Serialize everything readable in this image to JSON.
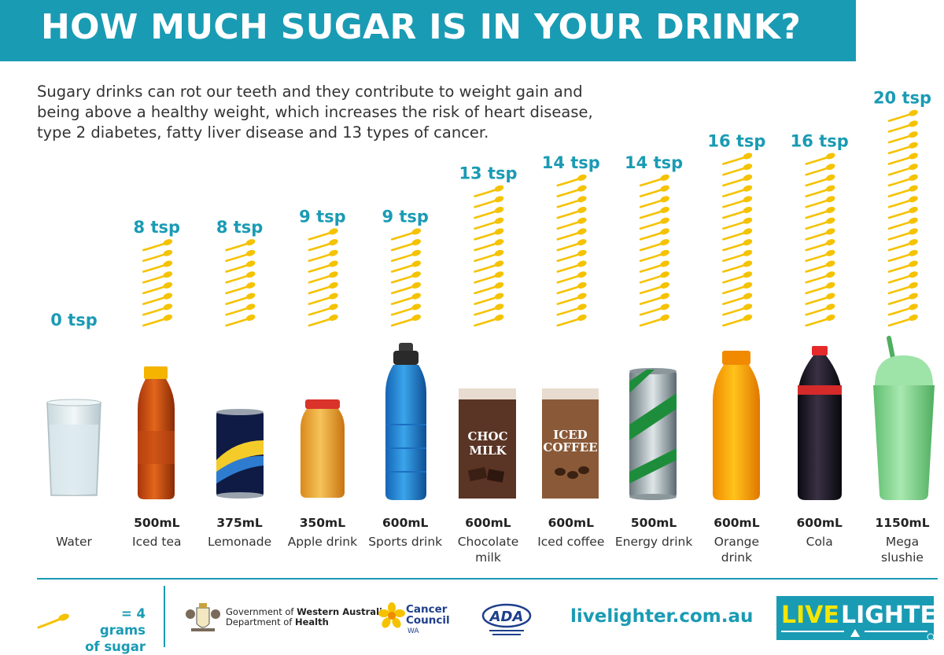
{
  "title": "HOW MUCH SUGAR IS IN YOUR DRINK?",
  "intro": "Sugary drinks can rot our teeth and they contribute to weight gain and being above a healthy weight, which increases the risk of heart disease, type 2 diabetes, fatty liver disease and 13 types of cancer.",
  "colors": {
    "accent": "#1a9bb4",
    "spoon": "#f5c200"
  },
  "chart_data": {
    "type": "bar",
    "unit_label": "tsp",
    "categories": [
      "Water",
      "Iced tea",
      "Lemonade",
      "Apple drink",
      "Sports drink",
      "Chocolate milk",
      "Iced coffee",
      "Energy drink",
      "Orange drink",
      "Cola",
      "Mega slushie"
    ],
    "values": [
      0,
      8,
      8,
      9,
      9,
      13,
      14,
      14,
      16,
      16,
      20
    ],
    "value_labels": [
      "0 tsp",
      "8 tsp",
      "8 tsp",
      "9 tsp",
      "9 tsp",
      "13 tsp",
      "14 tsp",
      "14 tsp",
      "16 tsp",
      "16 tsp",
      "20 tsp"
    ],
    "volumes": [
      "",
      "500mL",
      "375mL",
      "350mL",
      "600mL",
      "600mL",
      "600mL",
      "500mL",
      "600mL",
      "600mL",
      "1150mL"
    ],
    "name_lines": [
      [
        "Water"
      ],
      [
        "Iced tea"
      ],
      [
        "Lemonade"
      ],
      [
        "Apple drink"
      ],
      [
        "Sports drink"
      ],
      [
        "Chocolate",
        "milk"
      ],
      [
        "Iced coffee"
      ],
      [
        "Energy drink"
      ],
      [
        "Orange",
        "drink"
      ],
      [
        "Cola"
      ],
      [
        "Mega",
        "slushie"
      ]
    ],
    "drink_icons": [
      "water-glass",
      "iced-tea-bottle",
      "lemonade-can",
      "apple-drink-jar",
      "sports-drink-bottle",
      "chocolate-milk-carton",
      "iced-coffee-carton",
      "energy-drink-can",
      "orange-drink-bottle",
      "cola-bottle",
      "slushie-cup"
    ],
    "pack_text": {
      "choc": [
        "CHOC",
        "MILK"
      ],
      "coffee": [
        "ICED",
        "COFFEE"
      ]
    }
  },
  "legend": {
    "line1": "= 4 grams",
    "line2": "of sugar"
  },
  "footer": {
    "gov_line1_pre": "Government of ",
    "gov_line1_bold": "Western Australia",
    "gov_line2_pre": "Department of ",
    "gov_line2_bold": "Health",
    "cc_line1": "Cancer",
    "cc_line2": "Council",
    "cc_sub": "WA",
    "ada": "ADA",
    "website": "livelighter.com.au",
    "ll_part1": "LIVE",
    "ll_part2": "LIGHTER"
  }
}
